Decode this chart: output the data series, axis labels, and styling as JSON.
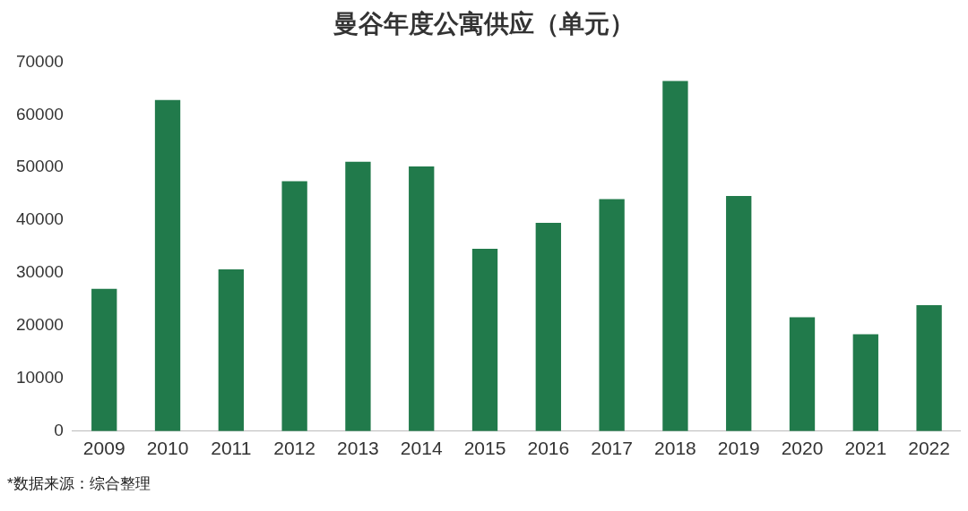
{
  "chart_data": {
    "type": "bar",
    "title": "曼谷年度公寓供应（单元）",
    "categories": [
      "2009",
      "2010",
      "2011",
      "2012",
      "2013",
      "2014",
      "2015",
      "2016",
      "2017",
      "2018",
      "2019",
      "2020",
      "2021",
      "2022"
    ],
    "values": [
      27000,
      62800,
      30700,
      47400,
      51100,
      50200,
      34600,
      39500,
      44000,
      66400,
      44600,
      21600,
      18400,
      23900
    ],
    "color": "#217a4b",
    "ylim": [
      0,
      70000
    ],
    "yticks": [
      0,
      10000,
      20000,
      30000,
      40000,
      50000,
      60000,
      70000
    ],
    "grid": false,
    "annotations": [
      "*数据来源：综合整理"
    ]
  }
}
